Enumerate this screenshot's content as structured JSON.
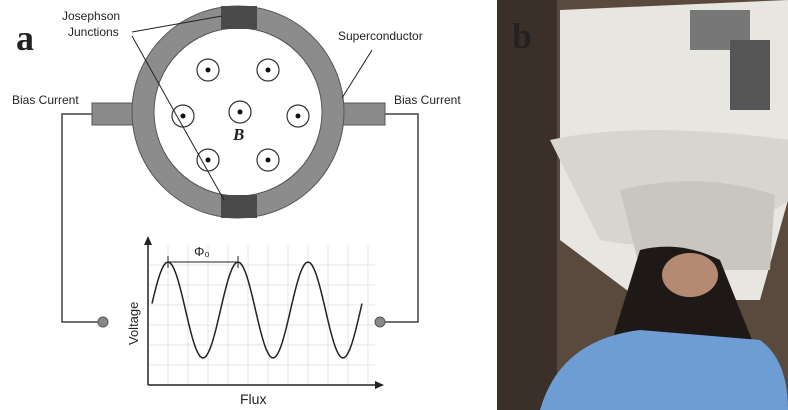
{
  "panel_a": {
    "label": "a",
    "junction_label": [
      "Josephson",
      "Junctions"
    ],
    "superconductor_label": "Superconductor",
    "bias_left": "Bias Current",
    "bias_right": "Bias Current",
    "field_label": "B",
    "period_label": "Φ₀",
    "y_axis_label": "Voltage",
    "x_axis_label": "Flux"
  },
  "panel_b": {
    "label": "b"
  }
}
